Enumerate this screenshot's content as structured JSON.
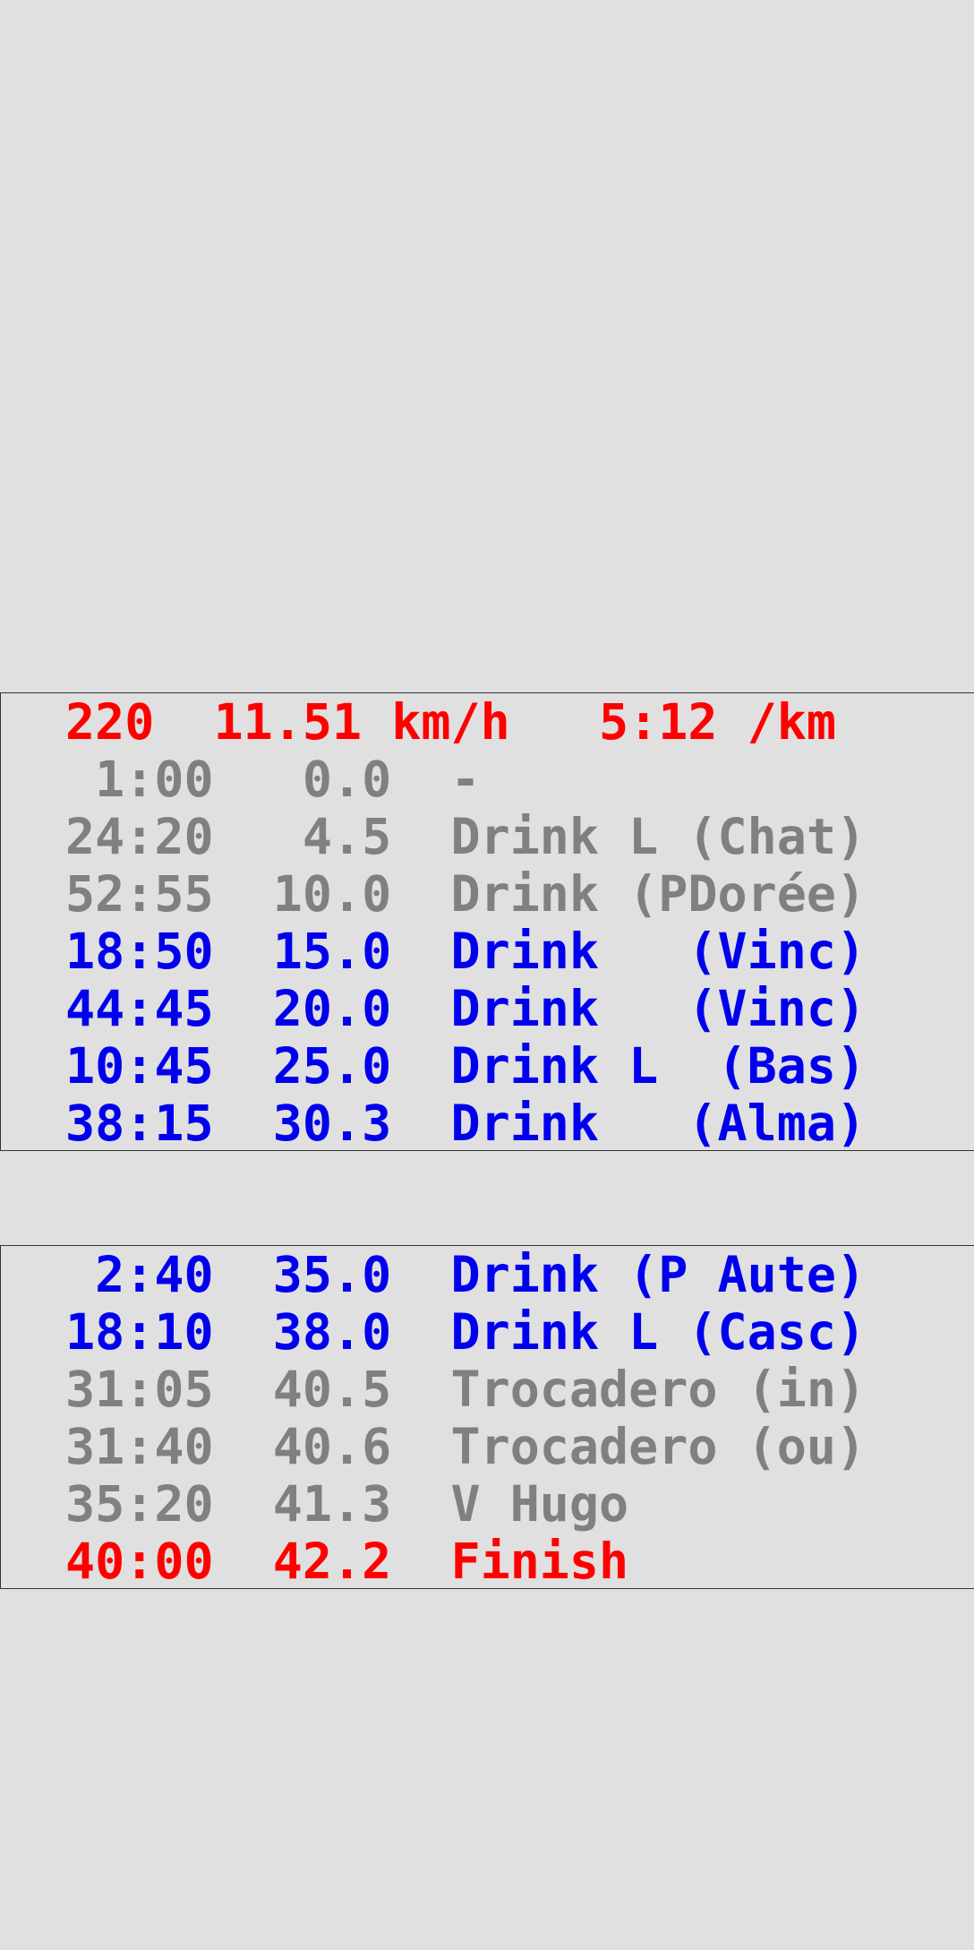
{
  "colors": {
    "background": "#e0e0e0",
    "highlight": "#ff0000",
    "upcoming": "#0000ee",
    "passed": "#808080",
    "border": "#333333"
  },
  "header": "220  11.51 km/h   5:12 /km",
  "panel1": [
    {
      "text": " 1:00   0.0  -",
      "status": "passed"
    },
    {
      "text": "24:20   4.5  Drink L (Chat)",
      "status": "passed"
    },
    {
      "text": "52:55  10.0  Drink (PDorée)",
      "status": "passed"
    },
    {
      "text": "18:50  15.0  Drink   (Vinc)",
      "status": "upcoming"
    },
    {
      "text": "44:45  20.0  Drink   (Vinc)",
      "status": "upcoming"
    },
    {
      "text": "10:45  25.0  Drink L  (Bas)",
      "status": "upcoming"
    },
    {
      "text": "38:15  30.3  Drink   (Alma)",
      "status": "upcoming"
    }
  ],
  "panel2": [
    {
      "text": " 2:40  35.0  Drink (P Aute)",
      "status": "upcoming"
    },
    {
      "text": "18:10  38.0  Drink L (Casc)",
      "status": "upcoming"
    },
    {
      "text": "31:05  40.5  Trocadero (in)",
      "status": "passed"
    },
    {
      "text": "31:40  40.6  Trocadero (ou)",
      "status": "passed"
    },
    {
      "text": "35:20  41.3  V Hugo",
      "status": "passed"
    },
    {
      "text": "40:00  42.2  Finish",
      "status": "finish"
    }
  ]
}
